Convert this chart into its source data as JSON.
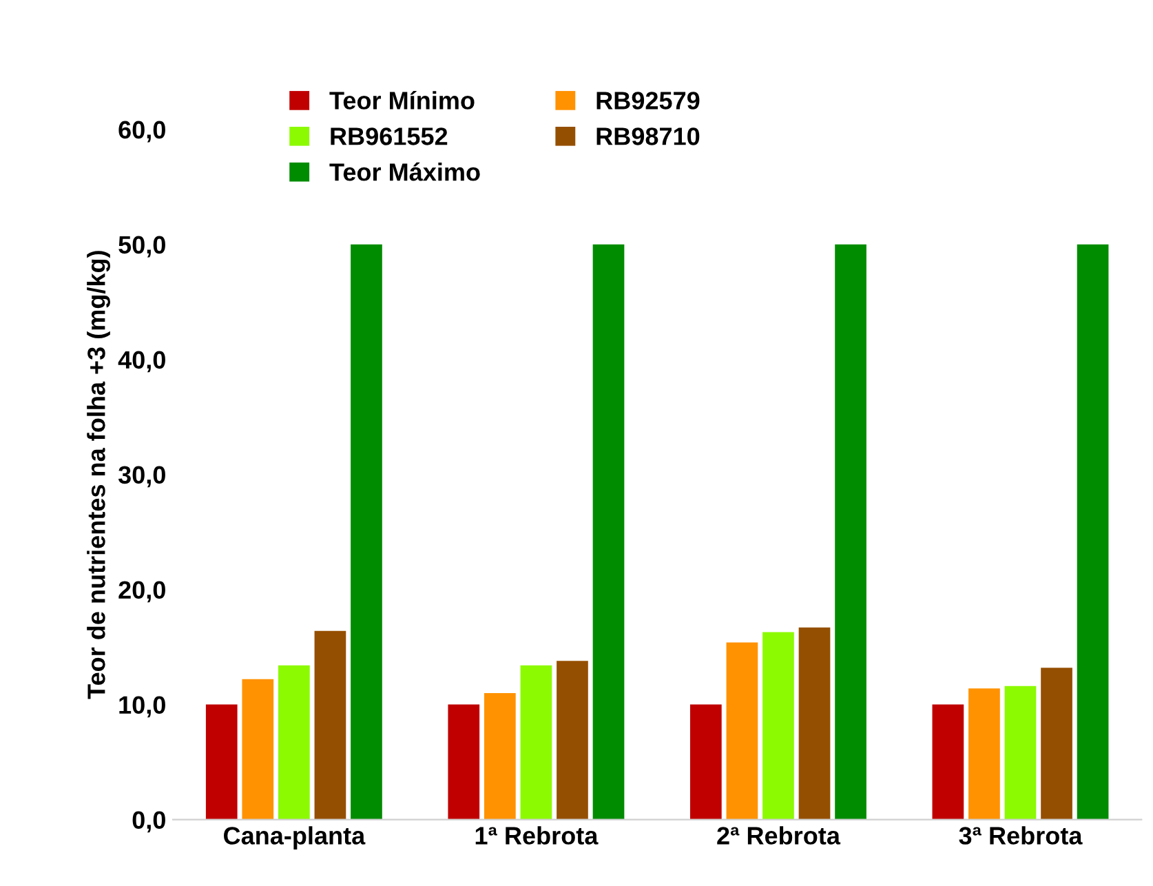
{
  "chart_data": {
    "type": "bar",
    "ylabel": "Teor de nutrientes na folha +3 (mg/kg)",
    "categories": [
      "Cana-planta",
      "1ª Rebrota",
      "2ª Rebrota",
      "3ª Rebrota"
    ],
    "series": [
      {
        "name": "Teor Mínimo",
        "color": "#c00000",
        "values": [
          10,
          10,
          10,
          10
        ]
      },
      {
        "name": "RB92579",
        "color": "#ff9200",
        "values": [
          12.2,
          11.0,
          15.4,
          11.4
        ]
      },
      {
        "name": "RB961552",
        "color": "#8cfa00",
        "values": [
          13.4,
          13.4,
          16.3,
          11.6
        ]
      },
      {
        "name": "RB98710",
        "color": "#954f00",
        "values": [
          16.4,
          13.8,
          16.7,
          13.2
        ]
      },
      {
        "name": "Teor Máximo",
        "color": "#008c00",
        "values": [
          50,
          50,
          50,
          50
        ]
      }
    ],
    "ylim": [
      0,
      60
    ],
    "yticks": [
      {
        "value": 0,
        "label": "0,0"
      },
      {
        "value": 10,
        "label": "10,0"
      },
      {
        "value": 20,
        "label": "20,0"
      },
      {
        "value": 30,
        "label": "30,0"
      },
      {
        "value": 40,
        "label": "40,0"
      },
      {
        "value": 50,
        "label": "50,0"
      },
      {
        "value": 60,
        "label": "60,0"
      }
    ],
    "grid": false,
    "legend": "top left"
  }
}
